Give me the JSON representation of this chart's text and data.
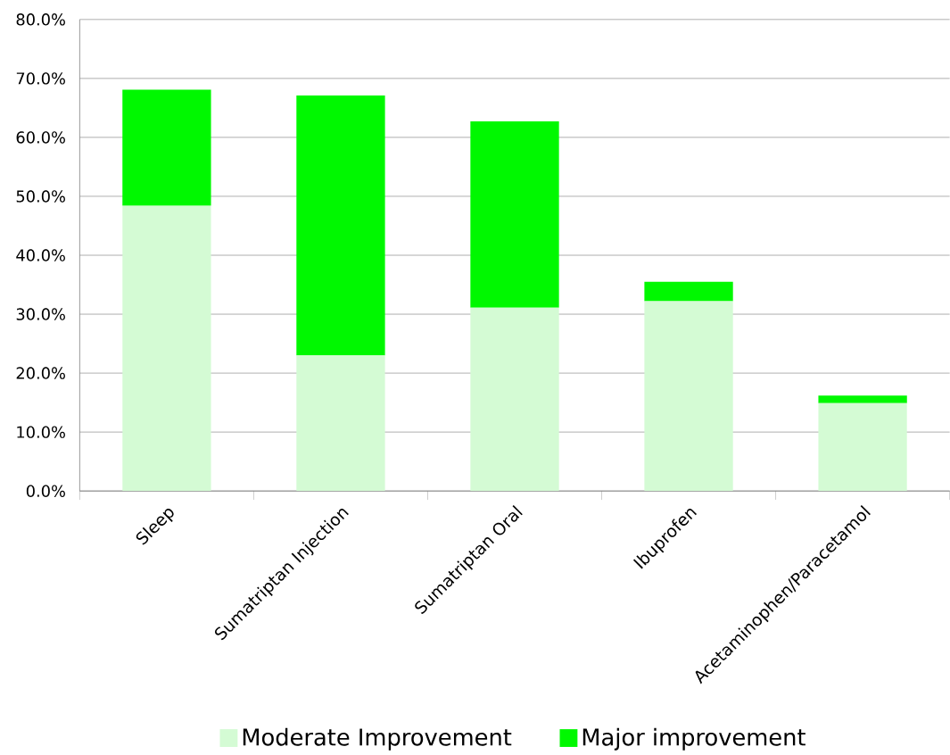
{
  "chart_data": {
    "type": "bar",
    "stacked": true,
    "categories": [
      "Sleep",
      "Sumatriptan Injection",
      "Sumatriptan Oral",
      "Ibuprofen",
      "Acetaminophen/Paracetamol"
    ],
    "series": [
      {
        "name": "Moderate Improvement",
        "color": "#d4fbd4",
        "values": [
          48.4,
          23.0,
          31.1,
          32.2,
          14.9
        ]
      },
      {
        "name": "Major improvement",
        "color": "#00f800",
        "values": [
          19.7,
          44.1,
          31.6,
          3.3,
          1.3
        ]
      }
    ],
    "ylim": [
      0,
      80
    ],
    "yticks": [
      {
        "value": 0,
        "label": "0.0%"
      },
      {
        "value": 10,
        "label": "10.0%"
      },
      {
        "value": 20,
        "label": "20.0%"
      },
      {
        "value": 30,
        "label": "30.0%"
      },
      {
        "value": 40,
        "label": "40.0%"
      },
      {
        "value": 50,
        "label": "50.0%"
      },
      {
        "value": 60,
        "label": "60.0%"
      },
      {
        "value": 70,
        "label": "70.0%"
      },
      {
        "value": 80,
        "label": "80.0%"
      }
    ],
    "grid": "y",
    "legend": "bottom"
  }
}
